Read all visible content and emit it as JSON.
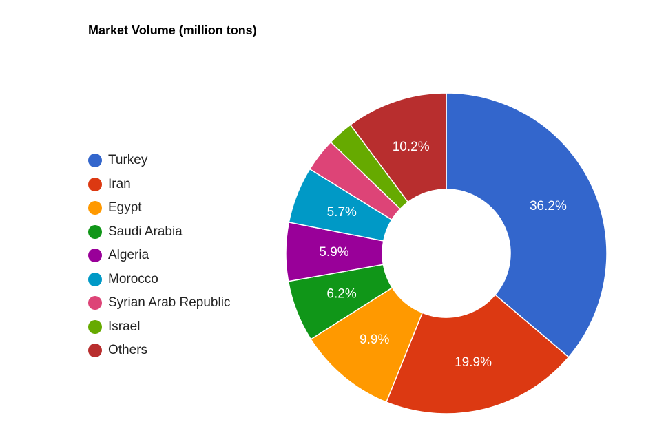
{
  "chart_data": {
    "type": "pie",
    "title": "Market Volume (million tons)",
    "donut": true,
    "legend_position": "left",
    "slices": [
      {
        "name": "Turkey",
        "value": 36.2,
        "label": "36.2%",
        "color": "#3366cc"
      },
      {
        "name": "Iran",
        "value": 19.9,
        "label": "19.9%",
        "color": "#dc3912"
      },
      {
        "name": "Egypt",
        "value": 9.9,
        "label": "9.9%",
        "color": "#ff9900"
      },
      {
        "name": "Saudi Arabia",
        "value": 6.2,
        "label": "6.2%",
        "color": "#109618"
      },
      {
        "name": "Algeria",
        "value": 5.9,
        "label": "5.9%",
        "color": "#990099"
      },
      {
        "name": "Morocco",
        "value": 5.7,
        "label": "5.7%",
        "color": "#0099c6"
      },
      {
        "name": "Syrian Arab Republic",
        "value": 3.4,
        "label": "",
        "color": "#dd4477"
      },
      {
        "name": "Israel",
        "value": 2.6,
        "label": "",
        "color": "#66aa00"
      },
      {
        "name": "Others",
        "value": 10.2,
        "label": "10.2%",
        "color": "#b82e2e"
      }
    ]
  }
}
